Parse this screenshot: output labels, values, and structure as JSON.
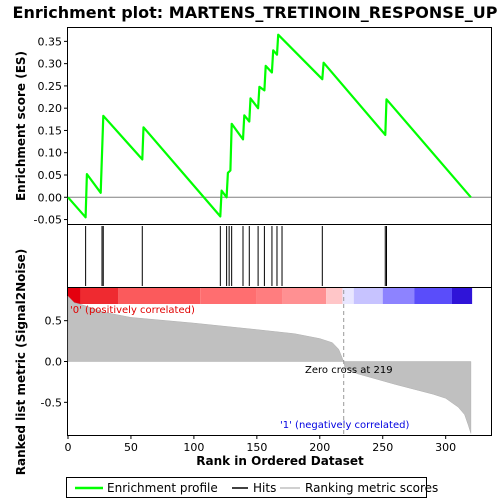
{
  "chart_data": {
    "type": "line",
    "title": "Enrichment plot: MARTENS_TRETINOIN_RESPONSE_UP",
    "xlabel": "Rank in Ordered Dataset",
    "ylabel_top": "Enrichment score (ES)",
    "ylabel_bottom": "Ranked list metric (Signal2Noise)",
    "xlim": [
      0,
      336
    ],
    "x_ticks": [
      "0",
      "50",
      "100",
      "150",
      "200",
      "250",
      "300"
    ],
    "x_tick_values": [
      0,
      50,
      100,
      150,
      200,
      250,
      300
    ],
    "es_ylim": [
      -0.06,
      0.38
    ],
    "es_ticks": [
      "-0.05",
      "0.00",
      "0.05",
      "0.10",
      "0.15",
      "0.20",
      "0.25",
      "0.30",
      "0.35"
    ],
    "es_tick_values": [
      -0.05,
      0.0,
      0.05,
      0.1,
      0.15,
      0.2,
      0.25,
      0.3,
      0.35
    ],
    "metric_ylim": [
      -0.9,
      0.9
    ],
    "metric_ticks": [
      "0.5",
      "0.0",
      "-0.5"
    ],
    "metric_tick_values": [
      0.5,
      0.0,
      -0.5
    ],
    "es_curve": {
      "x": [
        0,
        14,
        15,
        26,
        28,
        59,
        60,
        121,
        122,
        126,
        127,
        129,
        130,
        139,
        140,
        144,
        145,
        151,
        152,
        156,
        157,
        162,
        163,
        166,
        167,
        202,
        203,
        252,
        253,
        320
      ],
      "y": [
        0.0,
        -0.045,
        0.052,
        0.01,
        0.183,
        0.085,
        0.157,
        -0.043,
        0.015,
        0.0,
        0.055,
        0.06,
        0.165,
        0.13,
        0.184,
        0.17,
        0.222,
        0.2,
        0.248,
        0.24,
        0.295,
        0.28,
        0.33,
        0.32,
        0.365,
        0.265,
        0.302,
        0.14,
        0.22,
        0.0
      ]
    },
    "hits": [
      14,
      27,
      28,
      59,
      121,
      126,
      128,
      130,
      139,
      144,
      151,
      156,
      162,
      166,
      170,
      202,
      252,
      253
    ],
    "metric_profile": {
      "x": [
        0,
        5,
        10,
        20,
        30,
        50,
        100,
        150,
        180,
        200,
        210,
        215,
        219,
        220,
        230,
        260,
        290,
        300,
        310,
        315,
        318,
        320
      ],
      "y": [
        0.8,
        0.72,
        0.7,
        0.65,
        0.6,
        0.54,
        0.47,
        0.39,
        0.34,
        0.28,
        0.23,
        0.15,
        0.0,
        -0.08,
        -0.15,
        -0.28,
        -0.4,
        -0.45,
        -0.56,
        -0.65,
        -0.78,
        -0.88
      ]
    },
    "zero_cross_rank": 219,
    "heatmap_segments": [
      {
        "to": 10,
        "color": "#e4000e"
      },
      {
        "to": 40,
        "color": "#ef2a30"
      },
      {
        "to": 105,
        "color": "#fb5a5c"
      },
      {
        "to": 150,
        "color": "#ff6e70"
      },
      {
        "to": 170,
        "color": "#ff7d7f"
      },
      {
        "to": 205,
        "color": "#ff9092"
      },
      {
        "to": 218,
        "color": "#ffc6c8"
      },
      {
        "to": 227,
        "color": "#e8e6ff"
      },
      {
        "to": 250,
        "color": "#c7c3ff"
      },
      {
        "to": 275,
        "color": "#8d83ff"
      },
      {
        "to": 305,
        "color": "#5a4dfa"
      },
      {
        "to": 321,
        "color": "#2f14d8"
      }
    ],
    "pos_label": "'0' (positively correlated)",
    "neg_label": "'1' (negatively correlated)",
    "zero_cross_label": "Zero cross at 219",
    "colors": {
      "es_line": "#00ff00",
      "hit": "#000000",
      "metric_fill": "#c0c0c0",
      "pos_text": "#e00000",
      "neg_text": "#0000e0"
    },
    "legend": {
      "items": [
        {
          "label": "Enrichment profile",
          "swatch": "green-line"
        },
        {
          "label": "Hits",
          "swatch": "black-line"
        },
        {
          "label": "Ranking metric scores",
          "swatch": "gray-line"
        }
      ]
    }
  }
}
